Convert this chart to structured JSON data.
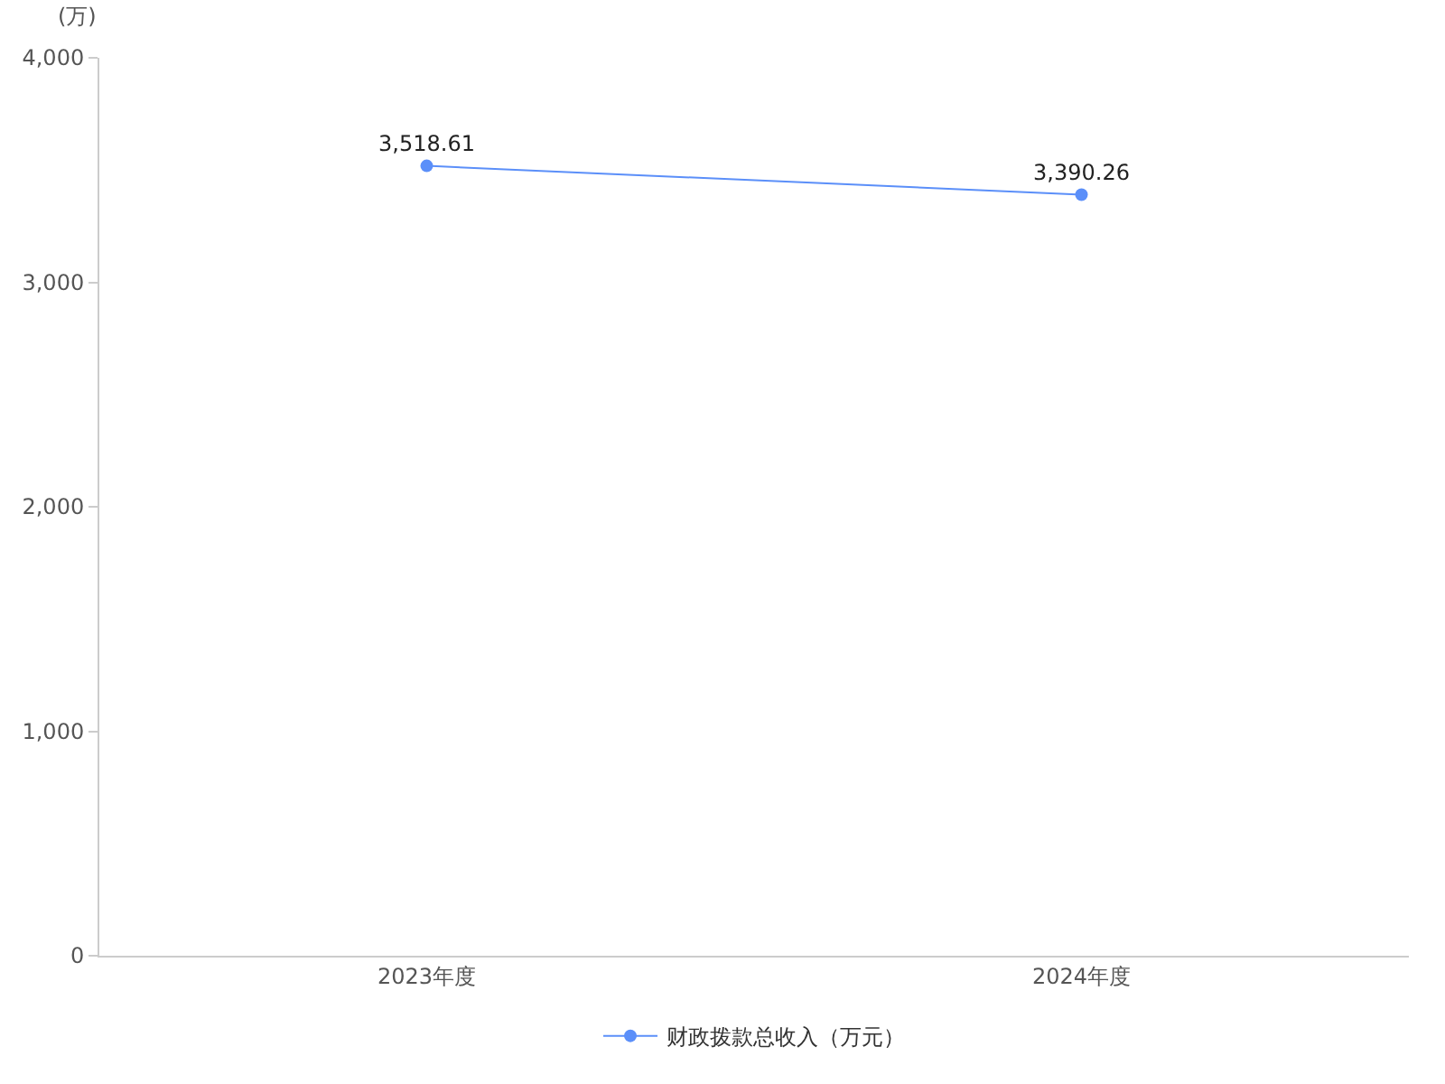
{
  "chart_data": {
    "type": "line",
    "ylabel": "(万)",
    "categories": [
      "2023年度",
      "2024年度"
    ],
    "series": [
      {
        "name": "财政拨款总收入（万元）",
        "color": "#5b8ff9",
        "values": [
          3518.61,
          3390.26
        ],
        "value_labels": [
          "3,518.61",
          "3,390.26"
        ]
      }
    ],
    "ylim": [
      0,
      4000
    ],
    "yticks": [
      {
        "value": 0,
        "label": "0"
      },
      {
        "value": 1000,
        "label": "1,000"
      },
      {
        "value": 2000,
        "label": "2,000"
      },
      {
        "value": 3000,
        "label": "3,000"
      },
      {
        "value": 4000,
        "label": "4,000"
      }
    ],
    "legend": "bottom",
    "marker": "circle",
    "line_style": "solid"
  }
}
